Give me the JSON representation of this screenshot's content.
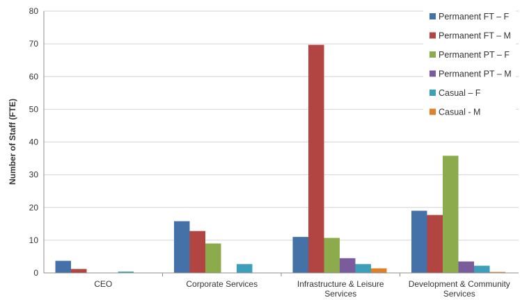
{
  "chart_data": {
    "type": "bar",
    "ylabel": "Number of Staff (FTE)",
    "ylim": [
      0,
      80
    ],
    "yticks": [
      0,
      10,
      20,
      30,
      40,
      50,
      60,
      70,
      80
    ],
    "grid": true,
    "legend_position": "top-right",
    "categories": [
      [
        "CEO"
      ],
      [
        "Corporate Services"
      ],
      [
        "Infrastructure & Leisure",
        "Services"
      ],
      [
        "Development & Community",
        "Services"
      ]
    ],
    "series": [
      {
        "name": "Permanent FT – F",
        "color": "#4472A8",
        "values": [
          3.7,
          15.8,
          11,
          19
        ]
      },
      {
        "name": "Permanent FT – M",
        "color": "#B24442",
        "values": [
          1.2,
          12.8,
          69.7,
          17.7
        ]
      },
      {
        "name": "Permanent PT – F",
        "color": "#8CAB4C",
        "values": [
          0,
          9,
          10.7,
          35.8
        ]
      },
      {
        "name": "Permanent PT – M",
        "color": "#7A5C9D",
        "values": [
          0,
          0,
          4.5,
          3.5
        ]
      },
      {
        "name": "Casual – F",
        "color": "#3E9FBA",
        "values": [
          0.4,
          2.7,
          2.7,
          2.2
        ]
      },
      {
        "name": "Casual - M",
        "color": "#E07F2A",
        "values": [
          0,
          0,
          1.4,
          0.3
        ]
      }
    ]
  }
}
